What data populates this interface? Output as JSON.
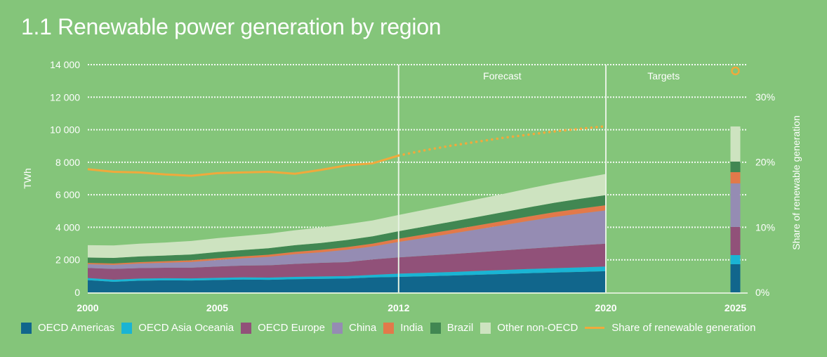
{
  "chart_data": {
    "type": "area",
    "title": "1.1 Renewable power generation by region",
    "xlabel": "",
    "ylabel": "TWh",
    "y2label": "Share of  renewable generation",
    "ylim": [
      0,
      14000
    ],
    "y2lim": [
      0,
      35
    ],
    "yticks": [
      "0",
      "2 000",
      "4 000",
      "6 000",
      "8 000",
      "10 000",
      "12 000",
      "14 000"
    ],
    "y2ticks": [
      "0%",
      "10%",
      "20%",
      "30%"
    ],
    "xticks": [
      "2000",
      "2005",
      "2012",
      "2020",
      "2025"
    ],
    "grid": true,
    "legend_position": "bottom",
    "regions": [
      {
        "label": "Forecast",
        "from": 2012,
        "to": 2020
      },
      {
        "label": "Targets",
        "from": 2020,
        "to": 2025
      }
    ],
    "x": [
      2000,
      2001,
      2002,
      2003,
      2004,
      2005,
      2006,
      2007,
      2008,
      2009,
      2010,
      2011,
      2012,
      2013,
      2014,
      2015,
      2016,
      2017,
      2018,
      2019,
      2020
    ],
    "series": [
      {
        "name": "OECD Americas",
        "color": "#11668c",
        "values": [
          750,
          650,
          720,
          740,
          730,
          760,
          790,
          770,
          810,
          830,
          850,
          920,
          950,
          990,
          1030,
          1080,
          1130,
          1180,
          1220,
          1260,
          1300
        ]
      },
      {
        "name": "OECD Asia Oceania",
        "color": "#1ab4d4",
        "values": [
          130,
          130,
          130,
          130,
          130,
          130,
          135,
          135,
          140,
          145,
          150,
          155,
          200,
          210,
          220,
          230,
          240,
          255,
          265,
          275,
          290
        ]
      },
      {
        "name": "OECD Europe",
        "color": "#915179",
        "values": [
          620,
          660,
          640,
          640,
          660,
          700,
          720,
          760,
          800,
          840,
          860,
          950,
          1000,
          1050,
          1100,
          1150,
          1200,
          1250,
          1300,
          1360,
          1400
        ]
      },
      {
        "name": "China",
        "color": "#958cb3",
        "values": [
          230,
          250,
          280,
          310,
          350,
          400,
          450,
          520,
          600,
          650,
          760,
          800,
          950,
          1100,
          1250,
          1400,
          1550,
          1700,
          1850,
          1950,
          2050
        ]
      },
      {
        "name": "India",
        "color": "#e2794a",
        "values": [
          80,
          85,
          90,
          95,
          100,
          110,
          120,
          130,
          140,
          150,
          160,
          170,
          200,
          215,
          230,
          245,
          260,
          275,
          290,
          305,
          320
        ]
      },
      {
        "name": "Brazil",
        "color": "#418752",
        "values": [
          330,
          340,
          350,
          350,
          360,
          380,
          390,
          400,
          410,
          420,
          440,
          450,
          460,
          480,
          500,
          520,
          540,
          560,
          580,
          600,
          620
        ]
      },
      {
        "name": "Other non-OECD",
        "color": "#cde3c0",
        "values": [
          760,
          770,
          780,
          800,
          830,
          850,
          870,
          900,
          920,
          950,
          970,
          980,
          1000,
          1030,
          1060,
          1090,
          1120,
          1160,
          1200,
          1240,
          1300
        ]
      }
    ],
    "targets_2025": {
      "x": 2025,
      "values": {
        "OECD Americas": 1730,
        "OECD Asia Oceania": 560,
        "OECD Europe": 1730,
        "China": 2680,
        "India": 690,
        "Brazil": 650,
        "Other non-OECD": 2160
      },
      "share_target_percent": 34
    },
    "share_line": {
      "name": "Share of renewable generation",
      "color": "#f0a93c",
      "x": [
        2000,
        2001,
        2002,
        2003,
        2004,
        2005,
        2006,
        2007,
        2008,
        2009,
        2010,
        2011,
        2012,
        2013,
        2014,
        2015,
        2016,
        2017,
        2018,
        2019,
        2020
      ],
      "values": [
        18.9,
        18.5,
        18.4,
        18.1,
        17.9,
        18.3,
        18.4,
        18.5,
        18.2,
        18.8,
        19.5,
        19.8,
        21.0,
        21.8,
        22.5,
        23.1,
        23.7,
        24.2,
        24.7,
        25.1,
        25.5
      ],
      "actual_until": 2012
    }
  },
  "legend": {
    "items": [
      {
        "label": "OECD Americas",
        "color": "#11668c"
      },
      {
        "label": "OECD Asia Oceania",
        "color": "#1ab4d4"
      },
      {
        "label": "OECD Europe",
        "color": "#915179"
      },
      {
        "label": "China",
        "color": "#958cb3"
      },
      {
        "label": "India",
        "color": "#e2794a"
      },
      {
        "label": "Brazil",
        "color": "#418752"
      },
      {
        "label": "Other non-OECD",
        "color": "#cde3c0"
      }
    ],
    "line_label": "Share of renewable generation",
    "line_color": "#f0a93c"
  }
}
